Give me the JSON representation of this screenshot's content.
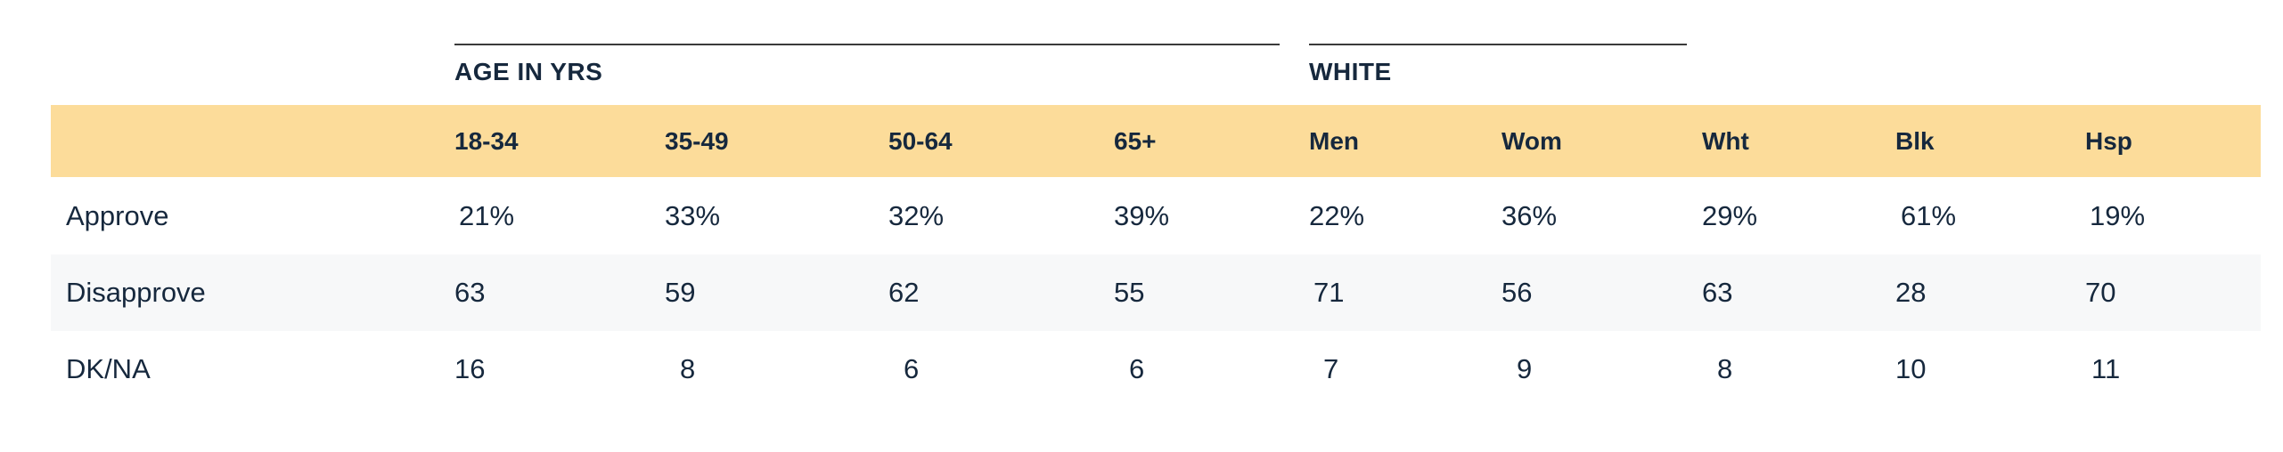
{
  "groups": [
    {
      "label": "AGE IN YRS"
    },
    {
      "label": "WHITE"
    }
  ],
  "columns": [
    "18-34",
    "35-49",
    "50-64",
    "65+",
    "Men",
    "Wom",
    "Wht",
    "Blk",
    "Hsp"
  ],
  "rows": [
    {
      "label": "Approve",
      "values": [
        "21%",
        "33%",
        "32%",
        "39%",
        "22%",
        "36%",
        "29%",
        "61%",
        "19%"
      ]
    },
    {
      "label": "Disapprove",
      "values": [
        "63",
        "59",
        "62",
        "55",
        "71",
        "56",
        "63",
        "28",
        "70"
      ]
    },
    {
      "label": "DK/NA",
      "values": [
        "16",
        "8",
        "6",
        "6",
        "7",
        "9",
        "8",
        "10",
        "11"
      ]
    }
  ]
}
